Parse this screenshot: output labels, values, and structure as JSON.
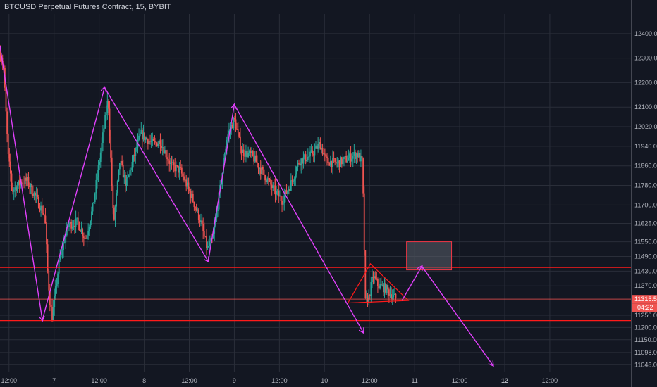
{
  "title": "BTCUSD Perpetual Futures Contract, 15, BYBIT",
  "colors": {
    "background": "#131722",
    "grid": "#2a2e39",
    "up": "#26a69a",
    "down": "#ef5350",
    "level_line": "#ff1a1a",
    "pattern": "#e040fb",
    "zone_border": "#f23645",
    "zone_fill": "#5a5e69",
    "axis_text": "#b2b5be"
  },
  "chart_data": {
    "type": "candlestick",
    "title": "BTCUSD Perpetual Futures Contract, 15, BYBIT",
    "timeframe": "15",
    "exchange": "BYBIT",
    "grid": true,
    "ylim": [
      11020,
      12480
    ],
    "xlim": [
      0,
      7.0
    ],
    "x_ticks": [
      {
        "x": 0.1,
        "label": "12:00"
      },
      {
        "x": 0.6,
        "label": "7"
      },
      {
        "x": 1.1,
        "label": "12:00"
      },
      {
        "x": 1.6,
        "label": "8"
      },
      {
        "x": 2.1,
        "label": "12:00"
      },
      {
        "x": 2.6,
        "label": "9"
      },
      {
        "x": 3.1,
        "label": "12:00"
      },
      {
        "x": 3.6,
        "label": "10"
      },
      {
        "x": 4.1,
        "label": "12:00"
      },
      {
        "x": 4.6,
        "label": "11"
      },
      {
        "x": 5.1,
        "label": "12:00"
      },
      {
        "x": 5.6,
        "label": "12"
      },
      {
        "x": 6.1,
        "label": "12:00"
      }
    ],
    "y_ticks": [
      "12400.00",
      "12300.00",
      "12200.00",
      "12100.00",
      "12020.00",
      "11940.00",
      "11860.00",
      "11780.00",
      "11700.00",
      "11625.00",
      "11550.00",
      "11490.00",
      "11430.00",
      "11370.00",
      "11250.00",
      "11200.00",
      "11150.00",
      "11098.00",
      "11048.00"
    ],
    "last_price": {
      "value": 11315.5,
      "label": "11315.50",
      "countdown": "04:22"
    },
    "path_anchors": [
      [
        0.0,
        12320
      ],
      [
        0.04,
        12270
      ],
      [
        0.09,
        11900
      ],
      [
        0.14,
        11760
      ],
      [
        0.22,
        11790
      ],
      [
        0.3,
        11800
      ],
      [
        0.4,
        11730
      ],
      [
        0.5,
        11650
      ],
      [
        0.53,
        11420
      ],
      [
        0.55,
        11320
      ],
      [
        0.58,
        11240
      ],
      [
        0.66,
        11480
      ],
      [
        0.76,
        11620
      ],
      [
        0.86,
        11630
      ],
      [
        0.95,
        11560
      ],
      [
        1.03,
        11690
      ],
      [
        1.13,
        11950
      ],
      [
        1.2,
        12140
      ],
      [
        1.26,
        11620
      ],
      [
        1.33,
        11880
      ],
      [
        1.4,
        11780
      ],
      [
        1.48,
        11890
      ],
      [
        1.56,
        11990
      ],
      [
        1.7,
        11950
      ],
      [
        1.78,
        11960
      ],
      [
        1.9,
        11860
      ],
      [
        2.0,
        11840
      ],
      [
        2.12,
        11740
      ],
      [
        2.22,
        11640
      ],
      [
        2.3,
        11520
      ],
      [
        2.36,
        11560
      ],
      [
        2.44,
        11760
      ],
      [
        2.52,
        11980
      ],
      [
        2.6,
        12050
      ],
      [
        2.68,
        11920
      ],
      [
        2.8,
        11900
      ],
      [
        2.92,
        11830
      ],
      [
        3.04,
        11760
      ],
      [
        3.13,
        11720
      ],
      [
        3.22,
        11780
      ],
      [
        3.32,
        11880
      ],
      [
        3.44,
        11900
      ],
      [
        3.55,
        11950
      ],
      [
        3.62,
        11880
      ],
      [
        3.74,
        11870
      ],
      [
        3.86,
        11890
      ],
      [
        3.96,
        11910
      ],
      [
        4.02,
        11875
      ],
      [
        4.04,
        11560
      ],
      [
        4.05,
        11300
      ],
      [
        4.09,
        11320
      ],
      [
        4.14,
        11410
      ],
      [
        4.2,
        11370
      ],
      [
        4.28,
        11360
      ],
      [
        4.35,
        11330
      ],
      [
        4.4,
        11315
      ]
    ],
    "horizontal_levels": [
      11445,
      11315.5,
      11228
    ],
    "pattern_zigzag": [
      [
        0.0,
        12350
      ],
      [
        0.47,
        11230
      ],
      [
        1.16,
        12180
      ],
      [
        2.31,
        11470
      ],
      [
        2.6,
        12110
      ],
      [
        4.03,
        11180
      ]
    ],
    "pattern_projection": [
      [
        4.46,
        11310
      ],
      [
        4.68,
        11450
      ],
      [
        5.47,
        11045
      ]
    ],
    "triangle": [
      [
        4.11,
        11460
      ],
      [
        4.53,
        11310
      ],
      [
        3.86,
        11300
      ]
    ],
    "zone": {
      "x0": 4.51,
      "x1": 5.01,
      "y_top": 11550,
      "y_bottom": 11435
    },
    "y_axis_position": "right",
    "x_axis_position": "bottom"
  }
}
